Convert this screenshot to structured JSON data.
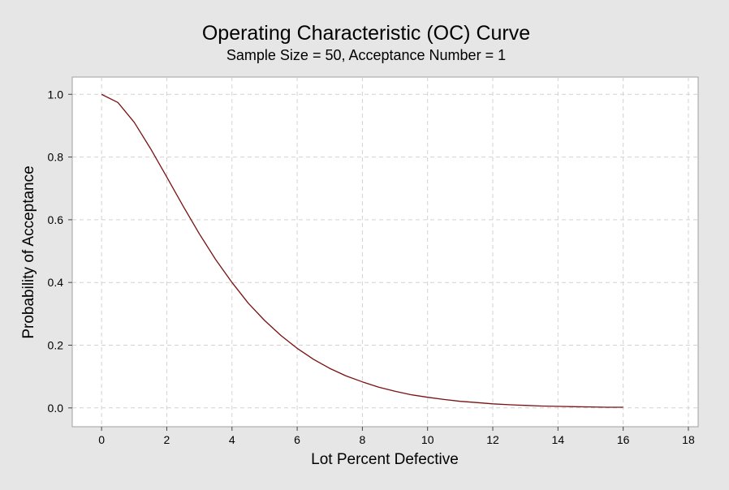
{
  "chart_data": {
    "type": "line",
    "title": "Operating Characteristic (OC) Curve",
    "subtitle": "Sample Size = 50, Acceptance Number = 1",
    "xlabel": "Lot Percent Defective",
    "ylabel": "Probability of Acceptance",
    "xlim": [
      -0.9,
      18.3
    ],
    "ylim": [
      -0.06,
      1.055
    ],
    "xticks": [
      0,
      2,
      4,
      6,
      8,
      10,
      12,
      14,
      16,
      18
    ],
    "yticks": [
      0.0,
      0.2,
      0.4,
      0.6,
      0.8,
      1.0
    ],
    "ytick_labels": [
      "0.0",
      "0.2",
      "0.4",
      "0.6",
      "0.8",
      "1.0"
    ],
    "grid": true,
    "series": [
      {
        "color": "#7a1010",
        "x": [
          0,
          0.5,
          1,
          1.5,
          2,
          2.5,
          3,
          3.5,
          4,
          4.5,
          5,
          5.5,
          6,
          6.5,
          7,
          7.5,
          8,
          8.5,
          9,
          9.5,
          10,
          10.5,
          11,
          11.5,
          12,
          12.5,
          13,
          13.5,
          14,
          14.5,
          15,
          15.5,
          16
        ],
        "y": [
          1.0,
          0.974,
          0.911,
          0.827,
          0.736,
          0.644,
          0.555,
          0.473,
          0.4,
          0.334,
          0.279,
          0.231,
          0.19,
          0.155,
          0.126,
          0.102,
          0.083,
          0.066,
          0.053,
          0.042,
          0.034,
          0.027,
          0.021,
          0.017,
          0.013,
          0.01,
          0.008,
          0.006,
          0.005,
          0.004,
          0.003,
          0.002,
          0.002
        ]
      }
    ]
  }
}
